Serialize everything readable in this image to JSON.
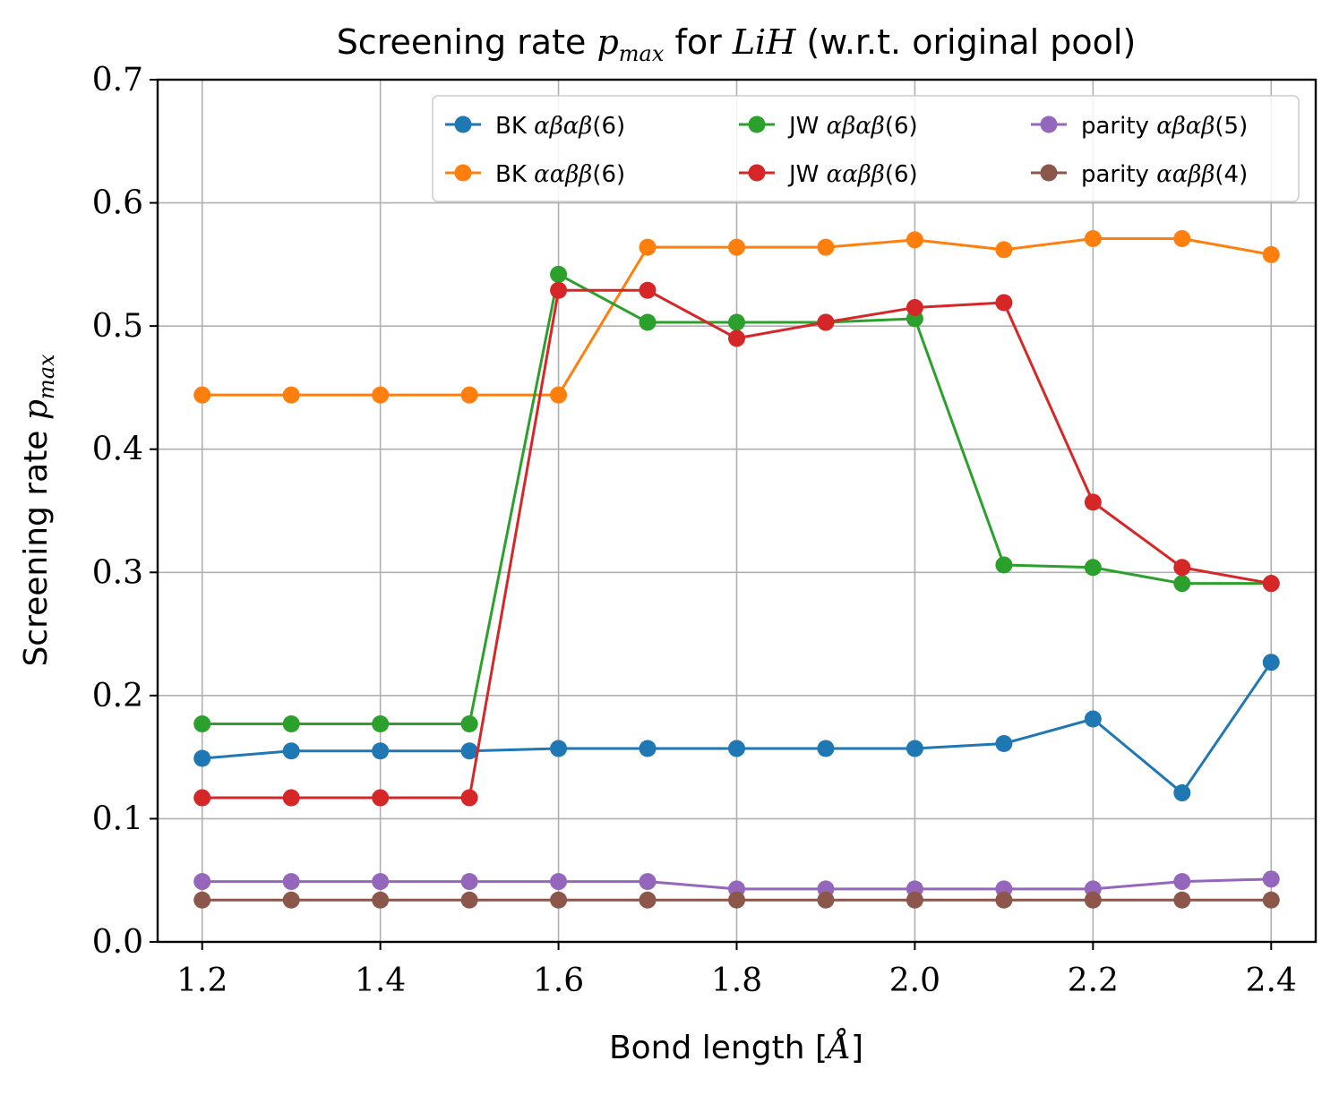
{
  "chart_data": {
    "type": "line",
    "title_prefix": "Screening rate ",
    "title_symbol": "p",
    "title_sub": "max",
    "title_mid": " for ",
    "title_molecule": "LiH",
    "title_suffix": " (w.r.t. original pool)",
    "xlabel_prefix": "Bond length [",
    "xlabel_unit": "Å",
    "xlabel_suffix": "]",
    "ylabel_prefix": "Screening rate ",
    "ylabel_symbol": "p",
    "ylabel_sub": "max",
    "xlim": [
      1.15,
      2.45
    ],
    "ylim": [
      0.0,
      0.7
    ],
    "xticks": [
      "1.2",
      "1.4",
      "1.6",
      "1.8",
      "2.0",
      "2.2",
      "2.4"
    ],
    "yticks": [
      "0.0",
      "0.1",
      "0.2",
      "0.3",
      "0.4",
      "0.5",
      "0.6",
      "0.7"
    ],
    "grid": true,
    "legend_position": "upper-right",
    "x": [
      1.2,
      1.3,
      1.4,
      1.5,
      1.6,
      1.7,
      1.8,
      1.9,
      2.0,
      2.1,
      2.2,
      2.3,
      2.4
    ],
    "series": [
      {
        "prefix": "BK ",
        "symbol": "αβαβ",
        "suffix": "(6)",
        "color": "#1f77b4",
        "values": [
          0.149,
          0.155,
          0.155,
          0.155,
          0.157,
          0.157,
          0.157,
          0.157,
          0.157,
          0.161,
          0.181,
          0.121,
          0.227
        ]
      },
      {
        "prefix": "BK ",
        "symbol": "ααββ",
        "suffix": "(6)",
        "color": "#ff7f0e",
        "values": [
          0.444,
          0.444,
          0.444,
          0.444,
          0.444,
          0.564,
          0.564,
          0.564,
          0.57,
          0.562,
          0.571,
          0.571,
          0.558
        ]
      },
      {
        "prefix": "JW ",
        "symbol": "αβαβ",
        "suffix": "(6)",
        "color": "#2ca02c",
        "values": [
          0.177,
          0.177,
          0.177,
          0.177,
          0.542,
          0.503,
          0.503,
          0.503,
          0.506,
          0.306,
          0.304,
          0.291,
          0.291
        ]
      },
      {
        "prefix": "JW ",
        "symbol": "ααββ",
        "suffix": "(6)",
        "color": "#d62728",
        "values": [
          0.117,
          0.117,
          0.117,
          0.117,
          0.529,
          0.529,
          0.49,
          0.503,
          0.515,
          0.519,
          0.357,
          0.304,
          0.291
        ]
      },
      {
        "prefix": "parity ",
        "symbol": "αβαβ",
        "suffix": "(5)",
        "color": "#9467bd",
        "values": [
          0.049,
          0.049,
          0.049,
          0.049,
          0.049,
          0.049,
          0.043,
          0.043,
          0.043,
          0.043,
          0.043,
          0.049,
          0.051
        ]
      },
      {
        "prefix": "parity ",
        "symbol": "ααββ",
        "suffix": "(4)",
        "color": "#8c564b",
        "values": [
          0.034,
          0.034,
          0.034,
          0.034,
          0.034,
          0.034,
          0.034,
          0.034,
          0.034,
          0.034,
          0.034,
          0.034,
          0.034
        ]
      }
    ]
  }
}
